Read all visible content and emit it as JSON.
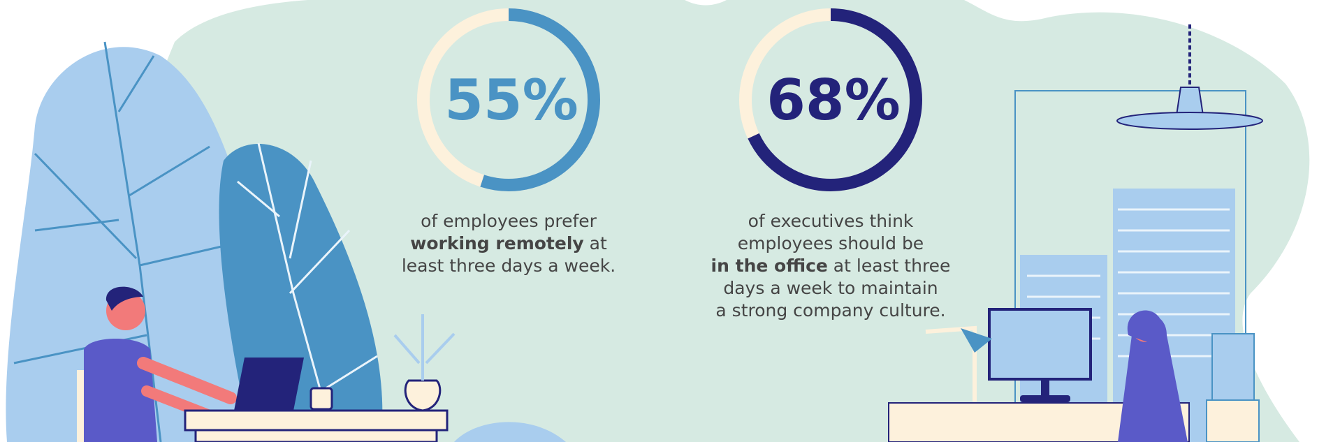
{
  "chart_data": [
    {
      "type": "donut",
      "values": [
        55
      ],
      "value_labels": [
        "55%"
      ],
      "color": "#4a93c4",
      "track_color": "#fdf1dc",
      "caption_lines": [
        [
          {
            "text": "of employees prefer",
            "bold": false
          }
        ],
        [
          {
            "text": "working remotely",
            "bold": true
          },
          {
            "text": " at",
            "bold": false
          }
        ],
        [
          {
            "text": "least three days a week.",
            "bold": false
          }
        ]
      ]
    },
    {
      "type": "donut",
      "values": [
        68
      ],
      "value_labels": [
        "68%"
      ],
      "color": "#23237a",
      "track_color": "#fdf1dc",
      "caption_lines": [
        [
          {
            "text": "of executives think",
            "bold": false
          }
        ],
        [
          {
            "text": "employees should be",
            "bold": false
          }
        ],
        [
          {
            "text": "in the office",
            "bold": true
          },
          {
            "text": " at least three",
            "bold": false
          }
        ],
        [
          {
            "text": "days a week to maintain",
            "bold": false
          }
        ],
        [
          {
            "text": "a strong company culture.",
            "bold": false
          }
        ]
      ]
    }
  ]
}
